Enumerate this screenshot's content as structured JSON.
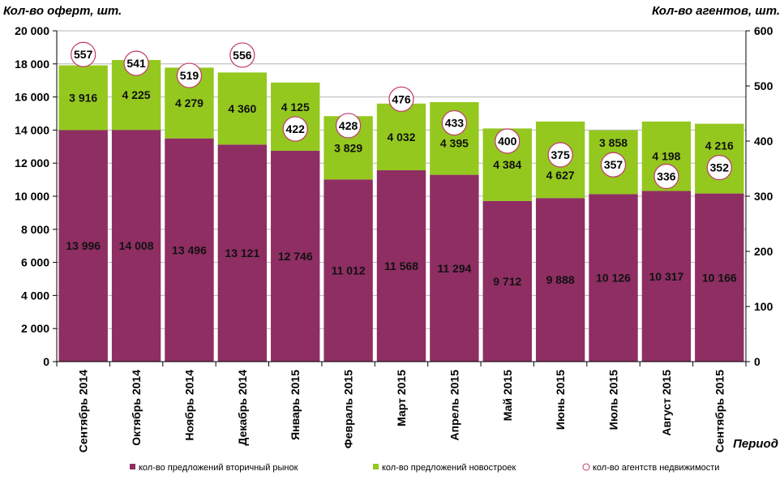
{
  "chart_data": {
    "type": "bar",
    "stacked": true,
    "y_left_title": "Кол-во оферт, шт.",
    "y_right_title": "Кол-во агентов, шт.",
    "x_title": "Период",
    "ylim_left": [
      0,
      20000
    ],
    "ylim_right": [
      0,
      600
    ],
    "y_left_ticks": [
      "0",
      "2 000",
      "4 000",
      "6 000",
      "8 000",
      "10 000",
      "12 000",
      "14 000",
      "16 000",
      "18 000",
      "20 000"
    ],
    "y_right_ticks": [
      "0",
      "100",
      "200",
      "300",
      "400",
      "500",
      "600"
    ],
    "grid": true,
    "legend_position": "bottom",
    "categories": [
      "Сентябрь 2014",
      "Октябрь 2014",
      "Ноябрь 2014",
      "Декабрь 2014",
      "Январь 2015",
      "Февраль 2015",
      "Март 2015",
      "Апрель 2015",
      "Май 2015",
      "Июнь 2015",
      "Июль 2015",
      "Август 2015",
      "Сентябрь 2015"
    ],
    "series": [
      {
        "name": "кол-во предложений вторичный рынок",
        "color": "#8e2e63",
        "axis": "left",
        "values": [
          13996,
          14008,
          13496,
          13121,
          12746,
          11012,
          11568,
          11294,
          9712,
          9888,
          10126,
          10317,
          10166
        ],
        "labels": [
          "13 996",
          "14 008",
          "13 496",
          "13 121",
          "12 746",
          "11 012",
          "11 568",
          "11 294",
          "9 712",
          "9 888",
          "10 126",
          "10 317",
          "10 166"
        ]
      },
      {
        "name": "кол-во предложений новостроек",
        "color": "#94c81e",
        "axis": "left",
        "values": [
          3916,
          4225,
          4279,
          4360,
          4125,
          3829,
          4032,
          4395,
          4384,
          4627,
          3858,
          4198,
          4216
        ],
        "labels": [
          "3 916",
          "4 225",
          "4 279",
          "4 360",
          "4 125",
          "3 829",
          "4 032",
          "4 395",
          "4 384",
          "4 627",
          "3 858",
          "4 198",
          "4 216"
        ]
      },
      {
        "name": "кол-во агентств  недвижимости",
        "color": "#c0396b",
        "axis": "right",
        "marker": "circle",
        "values": [
          557,
          541,
          519,
          556,
          422,
          428,
          476,
          433,
          400,
          375,
          357,
          336,
          352
        ],
        "labels": [
          "557",
          "541",
          "519",
          "556",
          "422",
          "428",
          "476",
          "433",
          "400",
          "375",
          "357",
          "336",
          "352"
        ]
      }
    ]
  }
}
